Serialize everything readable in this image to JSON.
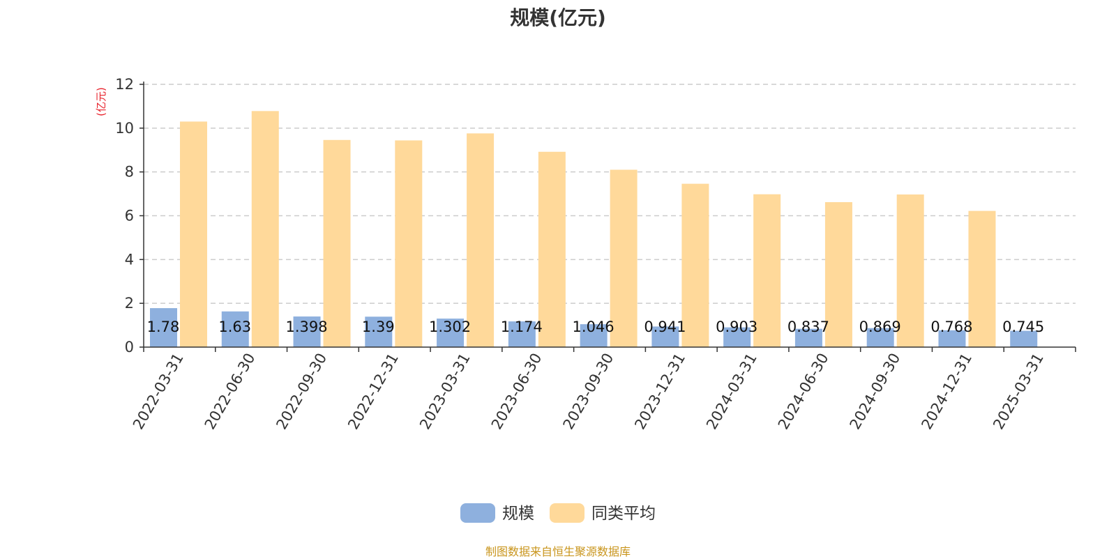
{
  "title": "规模(亿元)",
  "source_note": "制图数据来自恒生聚源数据库",
  "chart_data": {
    "type": "bar",
    "title": "规模(亿元)",
    "ylabel": "(亿元)",
    "xlabel": "",
    "ylim": [
      0,
      12
    ],
    "yticks": [
      0,
      2,
      4,
      6,
      8,
      10,
      12
    ],
    "grid": true,
    "legend_position": "bottom-center",
    "categories": [
      "2022-03-31",
      "2022-06-30",
      "2022-09-30",
      "2022-12-31",
      "2023-03-31",
      "2023-06-30",
      "2023-09-30",
      "2023-12-31",
      "2024-03-31",
      "2024-06-30",
      "2024-09-30",
      "2024-12-31",
      "2025-03-31"
    ],
    "series": [
      {
        "name": "规模",
        "color": "#8eb0de",
        "values": [
          1.78,
          1.63,
          1.398,
          1.39,
          1.302,
          1.174,
          1.046,
          0.941,
          0.903,
          0.837,
          0.869,
          0.768,
          0.745
        ],
        "labels": [
          "1.78",
          "1.63",
          "1.398",
          "1.39",
          "1.302",
          "1.174",
          "1.046",
          "0.941",
          "0.903",
          "0.837",
          "0.869",
          "0.768",
          "0.745"
        ]
      },
      {
        "name": "同类平均",
        "color": "#ffd99a",
        "values": [
          10.3,
          10.78,
          9.46,
          9.44,
          9.76,
          8.92,
          8.1,
          7.46,
          6.98,
          6.62,
          6.97,
          6.22,
          null
        ]
      }
    ]
  }
}
